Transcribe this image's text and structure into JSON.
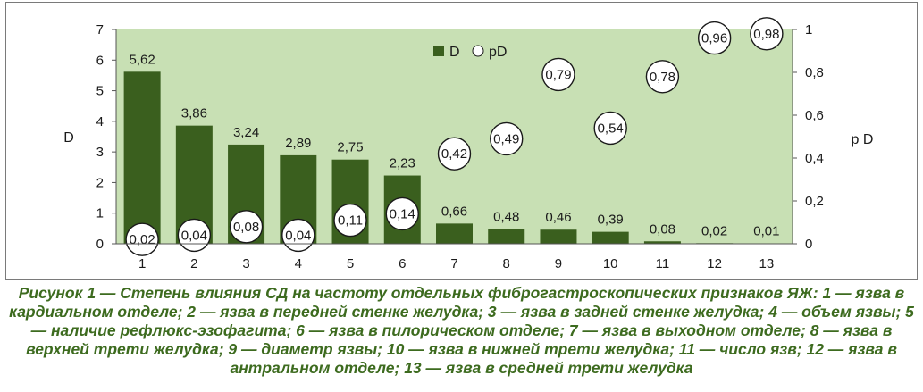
{
  "chart_data": {
    "type": "bar",
    "categories": [
      "1",
      "2",
      "3",
      "4",
      "5",
      "6",
      "7",
      "8",
      "9",
      "10",
      "11",
      "12",
      "13"
    ],
    "series": [
      {
        "name": "D",
        "type": "bar",
        "axis": "left",
        "values": [
          5.62,
          3.86,
          3.24,
          2.89,
          2.75,
          2.23,
          0.66,
          0.48,
          0.46,
          0.39,
          0.08,
          0.02,
          0.01
        ],
        "labels": [
          "5,62",
          "3,86",
          "3,24",
          "2,89",
          "2,75",
          "2,23",
          "0,66",
          "0,48",
          "0,46",
          "0,39",
          "0,08",
          "0,02",
          "0,01"
        ]
      },
      {
        "name": "pD",
        "type": "scatter",
        "axis": "right",
        "values": [
          0.02,
          0.04,
          0.08,
          0.04,
          0.11,
          0.14,
          0.42,
          0.49,
          0.79,
          0.54,
          0.78,
          0.96,
          0.98
        ],
        "labels": [
          "0,02",
          "0,04",
          "0,08",
          "0,04",
          "0,11",
          "0,14",
          "0,42",
          "0,49",
          "0,79",
          "0,54",
          "0,78",
          "0,96",
          "0,98"
        ]
      }
    ],
    "ylabel": "D",
    "y2label": "p D",
    "ylim": [
      0,
      7
    ],
    "y2lim": [
      0,
      1
    ],
    "yticks": [
      "0",
      "1",
      "2",
      "3",
      "4",
      "5",
      "6",
      "7"
    ],
    "y2ticks": [
      "0",
      "0,2",
      "0,4",
      "0,6",
      "0,8",
      "1"
    ],
    "legend_position": "top-center",
    "colors": {
      "bar": "#3a5f1e",
      "plot_bg": "#c8e0b4",
      "marker_fill": "#ffffff",
      "marker_stroke": "#1a1a1a"
    }
  },
  "caption": "Рисунок 1 — Степень влияния СД на частоту отдельных фиброгастроскопических признаков ЯЖ: 1 — язва в кардиальном отделе; 2 — язва в передней стенке желудка; 3 — язва в задней стенке желудка; 4 — объем язвы; 5 — наличие рефлюкс-эзофагита; 6 — язва в пилорическом отделе; 7 — язва в выходном отделе; 8 — язва в верхней трети желудка; 9 — диаметр язвы; 10 — язва в нижней трети желудка; 11 — число язв; 12 — язва в антральном отделе; 13 — язва в средней трети желудка"
}
